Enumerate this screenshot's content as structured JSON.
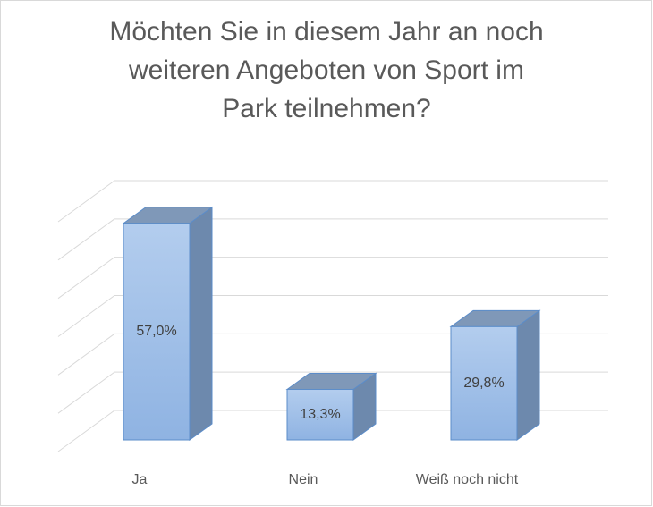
{
  "chart_data": {
    "type": "bar3d",
    "title": "Möchten Sie in diesem Jahr an noch\nweiteren Angeboten von Sport im\nPark teilnehmen?",
    "categories": [
      "Ja",
      "Nein",
      "Weiß noch nicht"
    ],
    "values": [
      57.0,
      13.3,
      29.8
    ],
    "value_labels": [
      "57,0%",
      "13,3%",
      "29,8%"
    ],
    "color": "#9dbde6",
    "ylim": [
      0,
      60
    ],
    "yticks": [
      0,
      10,
      20,
      30,
      40,
      50,
      60
    ],
    "grid": true
  }
}
